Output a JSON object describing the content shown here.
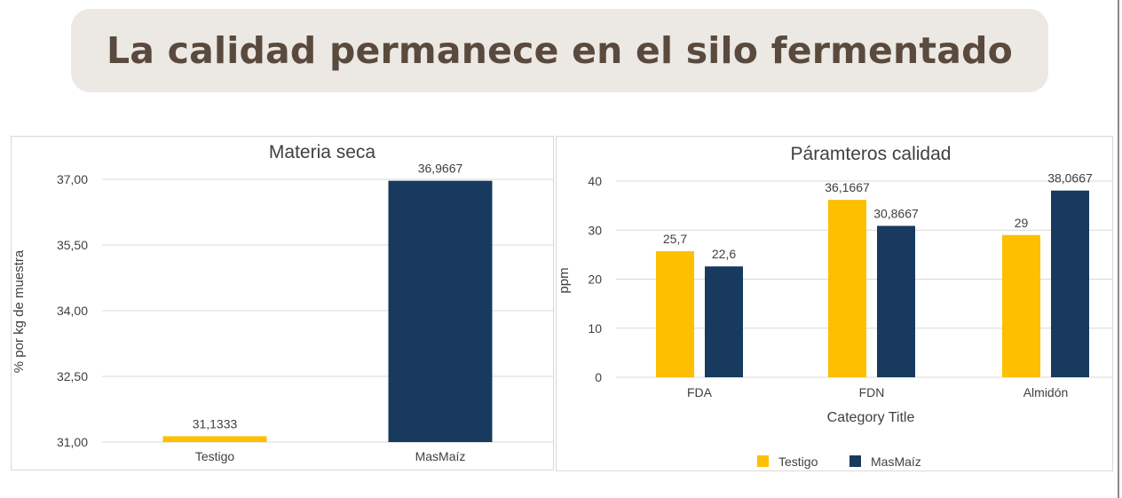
{
  "header": {
    "title": "La calidad permanece en el silo fermentado"
  },
  "colors": {
    "testigo": "#fdbf00",
    "masmaiz": "#173a5e",
    "title_bg": "#ece8e4",
    "title_text": "#5a4a3e"
  },
  "chart_data": [
    {
      "type": "bar",
      "title": "Materia seca",
      "xlabel": "",
      "ylabel": "% por kg de muestra",
      "categories": [
        "Testigo",
        "MasMaíz"
      ],
      "values": [
        31.1333,
        36.9667
      ],
      "value_labels": [
        "31,1333",
        "36,9667"
      ],
      "ylim": [
        31.0,
        37.0
      ],
      "yticks": [
        "31,00",
        "32,50",
        "34,00",
        "35,50",
        "37,00"
      ],
      "ytick_values": [
        31.0,
        32.5,
        34.0,
        35.5,
        37.0
      ],
      "grid": true
    },
    {
      "type": "bar",
      "title": "Páramteros calidad",
      "xlabel": "Category Title",
      "ylabel": "ppm",
      "categories": [
        "FDA",
        "FDN",
        "Almidón"
      ],
      "series": [
        {
          "name": "Testigo",
          "values": [
            25.7,
            36.1667,
            29
          ],
          "labels": [
            "25,7",
            "36,1667",
            "29"
          ]
        },
        {
          "name": "MasMaíz",
          "values": [
            22.6,
            30.8667,
            38.0667
          ],
          "labels": [
            "22,6",
            "30,8667",
            "38,0667"
          ]
        }
      ],
      "ylim": [
        0,
        40
      ],
      "yticks": [
        "0",
        "10",
        "20",
        "30",
        "40"
      ],
      "ytick_values": [
        0,
        10,
        20,
        30,
        40
      ],
      "legend": {
        "position": "bottom",
        "entries": [
          "Testigo",
          "MasMaíz"
        ]
      },
      "grid": true
    }
  ]
}
